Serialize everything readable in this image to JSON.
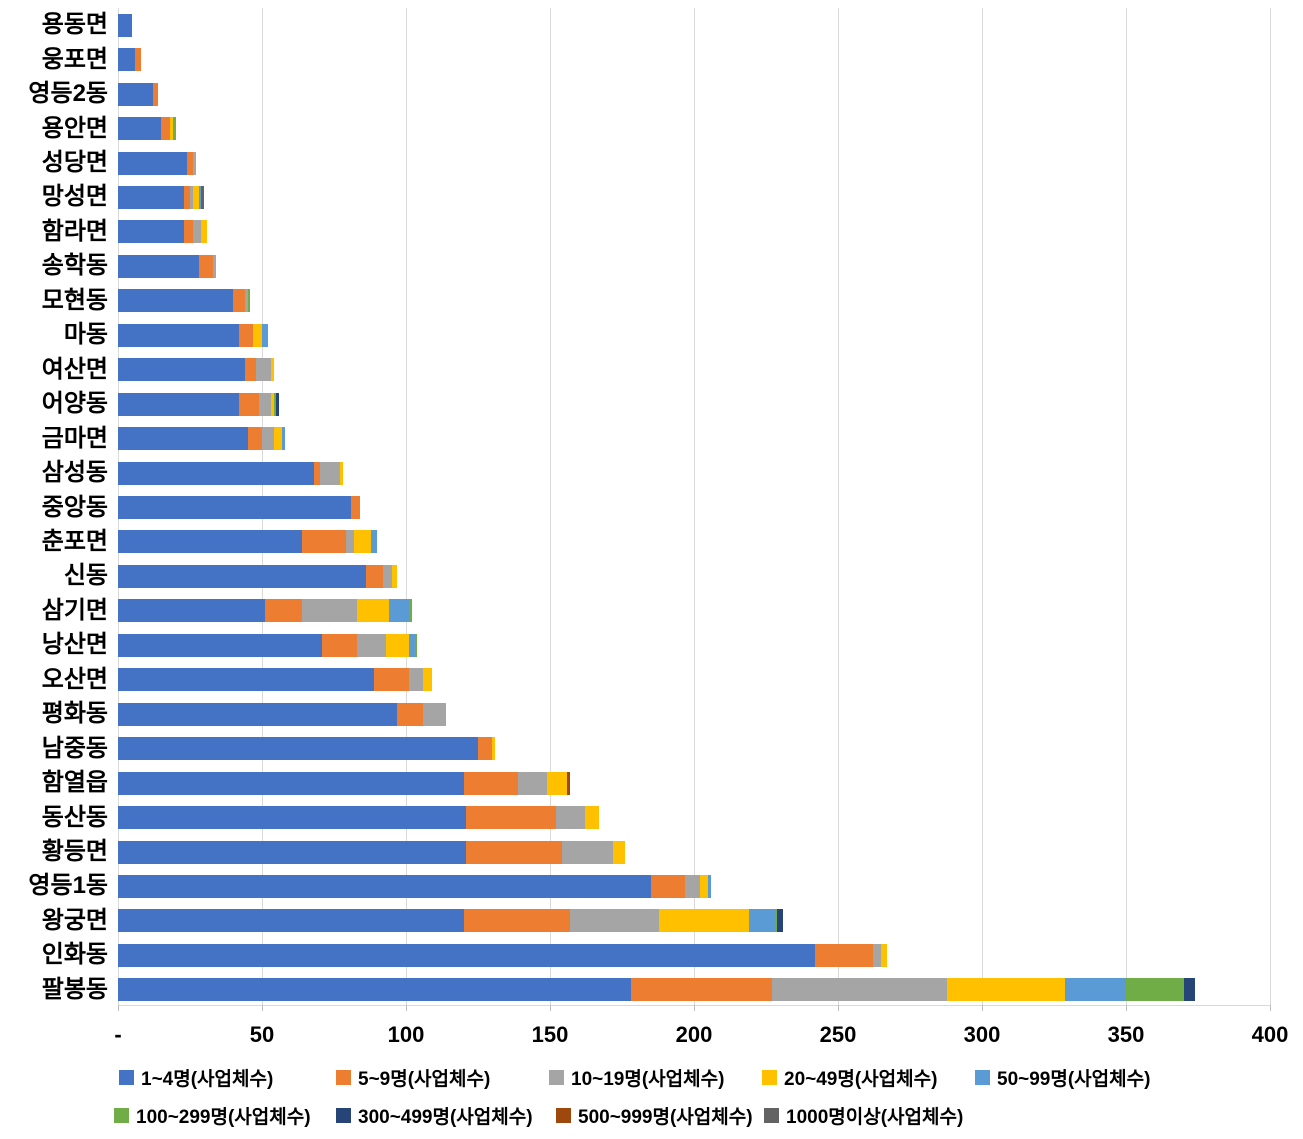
{
  "chart_data": {
    "type": "bar",
    "orientation": "horizontal",
    "stacked": true,
    "title": "",
    "xlabel": "",
    "ylabel": "",
    "grid": true,
    "legend_position": "bottom",
    "categories": [
      "용동면",
      "웅포면",
      "영등2동",
      "용안면",
      "성당면",
      "망성면",
      "함라면",
      "송학동",
      "모현동",
      "마동",
      "여산면",
      "어양동",
      "금마면",
      "삼성동",
      "중앙동",
      "춘포면",
      "신동",
      "삼기면",
      "낭산면",
      "오산면",
      "평화동",
      "남중동",
      "함열읍",
      "동산동",
      "황등면",
      "영등1동",
      "왕궁면",
      "인화동",
      "팔봉동"
    ],
    "series": [
      {
        "name": "1~4명(사업체수)",
        "color": "#4472C4",
        "values": [
          5,
          6,
          12,
          15,
          24,
          23,
          23,
          28,
          40,
          42,
          44,
          42,
          45,
          68,
          81,
          64,
          86,
          51,
          71,
          89,
          97,
          125,
          120,
          121,
          121,
          185,
          120,
          242,
          178
        ]
      },
      {
        "name": "5~9명(사업체수)",
        "color": "#ED7D31",
        "values": [
          0,
          2,
          2,
          3,
          2,
          2,
          3,
          5,
          4,
          5,
          4,
          7,
          5,
          2,
          3,
          15,
          6,
          13,
          12,
          12,
          9,
          5,
          19,
          31,
          33,
          12,
          37,
          20,
          49
        ]
      },
      {
        "name": "10~19명(사업체수)",
        "color": "#A5A5A5",
        "values": [
          0,
          0,
          0,
          0,
          1,
          1,
          3,
          1,
          1,
          0,
          5,
          4,
          4,
          7,
          0,
          3,
          3,
          19,
          10,
          5,
          8,
          0,
          10,
          10,
          18,
          5,
          31,
          3,
          61
        ]
      },
      {
        "name": "20~49명(사업체수)",
        "color": "#FFC000",
        "values": [
          0,
          0,
          0,
          1,
          0,
          2,
          2,
          0,
          0,
          3,
          1,
          1,
          3,
          1,
          0,
          6,
          2,
          11,
          8,
          3,
          0,
          1,
          7,
          5,
          4,
          3,
          31,
          2,
          41
        ]
      },
      {
        "name": "50~99명(사업체수)",
        "color": "#5B9BD5",
        "values": [
          0,
          0,
          0,
          0,
          0,
          1,
          0,
          0,
          0,
          2,
          0,
          0,
          1,
          0,
          0,
          2,
          0,
          7,
          2,
          0,
          0,
          0,
          0,
          0,
          0,
          1,
          9,
          0,
          21
        ]
      },
      {
        "name": "100~299명(사업체수)",
        "color": "#70AD47",
        "values": [
          0,
          0,
          0,
          1,
          0,
          0,
          0,
          0,
          1,
          0,
          0,
          1,
          0,
          0,
          0,
          0,
          0,
          1,
          1,
          0,
          0,
          0,
          0,
          0,
          0,
          0,
          1,
          0,
          20
        ]
      },
      {
        "name": "300~499명(사업체수)",
        "color": "#264478",
        "values": [
          0,
          0,
          0,
          0,
          0,
          0,
          0,
          0,
          0,
          0,
          0,
          1,
          0,
          0,
          0,
          0,
          0,
          0,
          0,
          0,
          0,
          0,
          0,
          0,
          0,
          0,
          2,
          0,
          4
        ]
      },
      {
        "name": "500~999명(사업체수)",
        "color": "#9E480E",
        "values": [
          0,
          0,
          0,
          0,
          0,
          0,
          0,
          0,
          0,
          0,
          0,
          0,
          0,
          0,
          0,
          0,
          0,
          0,
          0,
          0,
          0,
          0,
          1,
          0,
          0,
          0,
          0,
          0,
          0
        ]
      },
      {
        "name": "1000명이상(사업체수)",
        "color": "#636363",
        "values": [
          0,
          0,
          0,
          0,
          0,
          1,
          0,
          0,
          0,
          0,
          0,
          0,
          0,
          0,
          0,
          0,
          0,
          0,
          0,
          0,
          0,
          0,
          0,
          0,
          0,
          0,
          0,
          0,
          0
        ]
      }
    ],
    "x_axis": {
      "min": 0,
      "max": 400,
      "tick_step": 50,
      "tick_labels": [
        "-",
        "50",
        "100",
        "150",
        "200",
        "250",
        "300",
        "350",
        "400"
      ]
    }
  }
}
